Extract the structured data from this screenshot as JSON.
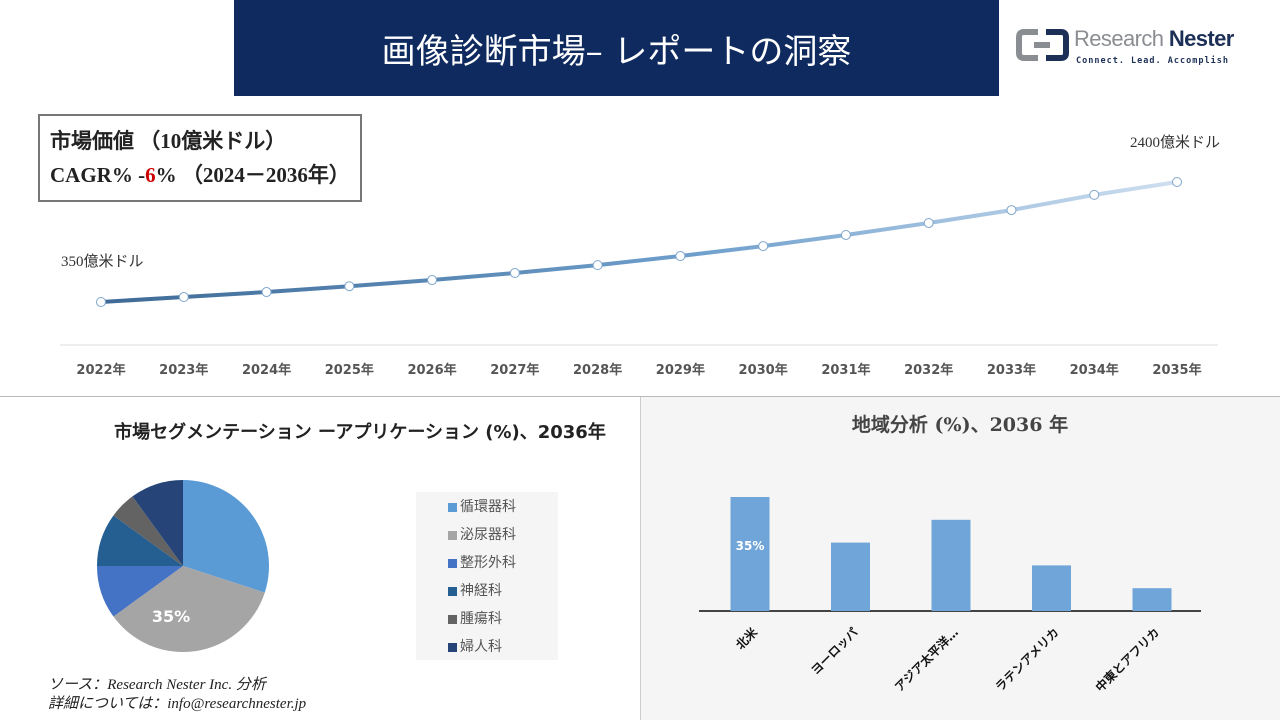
{
  "header": {
    "title": "画像診断市場– レポートの洞察"
  },
  "logo": {
    "name_part1": "Research",
    "name_part2": "Nester",
    "tagline": "Connect. Lead. Accomplish"
  },
  "info_box": {
    "line1": "市場価値 （10億米ドル）",
    "cagr_prefix": "CAGR% -",
    "cagr_value": "6",
    "cagr_suffix": "% （2024－2036年）"
  },
  "colors": {
    "header_bg": "#0f2a5e",
    "bar": "#6fa5d8",
    "cagr_value": "#cc0000"
  },
  "chart_data": [
    {
      "type": "line",
      "x": [
        "2022年",
        "2023年",
        "2024年",
        "2025年",
        "2026年",
        "2027年",
        "2028年",
        "2029年",
        "2030年",
        "2031年",
        "2032年",
        "2033年",
        "2034年",
        "2035年"
      ],
      "values": [
        350,
        435,
        520,
        620,
        725,
        845,
        980,
        1135,
        1305,
        1495,
        1700,
        1920,
        2180,
        2400
      ],
      "unit": "億米ドル",
      "annotations": {
        "start": "350億米ドル",
        "end": "2400億米ドル"
      },
      "grid": false
    },
    {
      "type": "pie",
      "title": "市場セグメンテーション ーアプリケーション (%)、2036年",
      "labels": [
        "循環器科",
        "泌尿器科",
        "整形外科",
        "神経科",
        "腫瘍科",
        "婦人科"
      ],
      "values": [
        30,
        35,
        10,
        10,
        5,
        10
      ],
      "colors": [
        "#5b9bd5",
        "#a5a5a5",
        "#4472c4",
        "#255e91",
        "#636363",
        "#264478"
      ],
      "data_label": "35%",
      "legend": "right"
    },
    {
      "type": "bar",
      "title": "地域分析 (%)、2036 年",
      "categories": [
        "北米",
        "ヨーロッパ",
        "アジア太平洋…",
        "ラテンアメリカ",
        "中東とアフリカ"
      ],
      "values": [
        35,
        21,
        28,
        14,
        7
      ],
      "data_label": "35%",
      "ylim": [
        0,
        35
      ]
    }
  ],
  "footer": {
    "source": "ソース：Research Nester Inc. 分析",
    "contact": "詳細については：info@researchnester.jp"
  }
}
